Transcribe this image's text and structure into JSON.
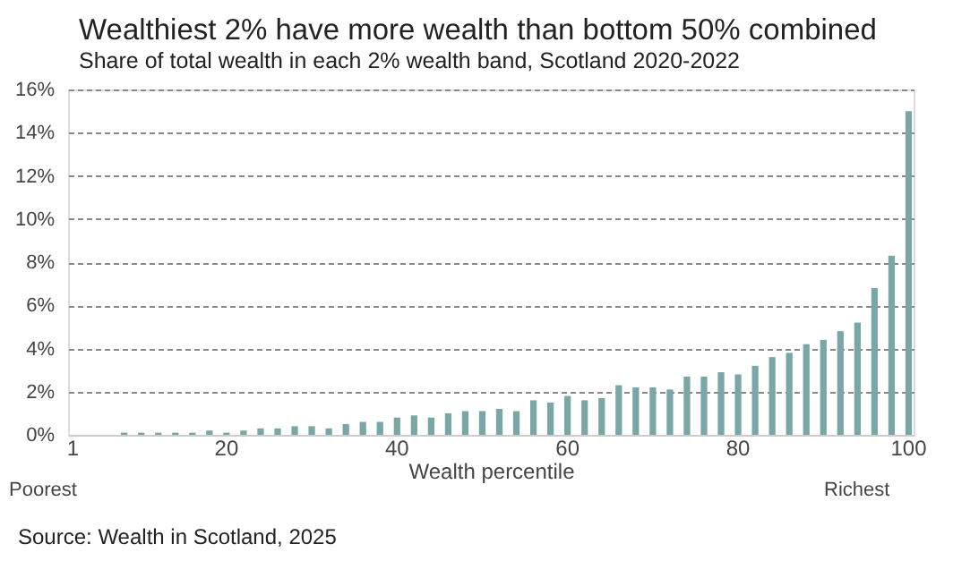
{
  "chart_data": {
    "type": "bar",
    "title": "Wealthiest 2% have more wealth than bottom 50% combined",
    "subtitle": "Share of total wealth in each 2% wealth band, Scotland 2020-2022",
    "xlabel": "Wealth percentile",
    "categories": [
      "1",
      null,
      null,
      null,
      null,
      null,
      null,
      null,
      null,
      "20",
      null,
      null,
      null,
      null,
      null,
      null,
      null,
      null,
      null,
      "40",
      null,
      null,
      null,
      null,
      null,
      null,
      null,
      null,
      null,
      "60",
      null,
      null,
      null,
      null,
      null,
      null,
      null,
      null,
      null,
      "80",
      null,
      null,
      null,
      null,
      null,
      null,
      null,
      null,
      null,
      "100"
    ],
    "values": [
      0,
      0,
      0,
      0.1,
      0.1,
      0.1,
      0.1,
      0.1,
      0.2,
      0.1,
      0.2,
      0.3,
      0.3,
      0.4,
      0.4,
      0.3,
      0.5,
      0.6,
      0.6,
      0.8,
      0.9,
      0.8,
      1.0,
      1.1,
      1.1,
      1.2,
      1.1,
      1.6,
      1.5,
      1.8,
      1.6,
      1.7,
      2.3,
      2.2,
      2.2,
      2.1,
      2.7,
      2.7,
      2.9,
      2.8,
      3.2,
      3.6,
      3.8,
      4.2,
      4.4,
      4.8,
      5.2,
      6.8,
      8.3,
      15.0
    ],
    "color": "#7aa6a6",
    "ylim": [
      0,
      16
    ],
    "yticks": [
      {
        "value": 0,
        "label": "0%"
      },
      {
        "value": 2,
        "label": "2%"
      },
      {
        "value": 4,
        "label": "4%"
      },
      {
        "value": 6,
        "label": "6%"
      },
      {
        "value": 8,
        "label": "8%"
      },
      {
        "value": 10,
        "label": "10%"
      },
      {
        "value": 12,
        "label": "12%"
      },
      {
        "value": 14,
        "label": "14%"
      },
      {
        "value": 16,
        "label": "16%"
      }
    ],
    "grid": "y",
    "annotations": [
      "Poorest",
      "Richest",
      "Source: Wealth in Scotland, 2025"
    ]
  }
}
